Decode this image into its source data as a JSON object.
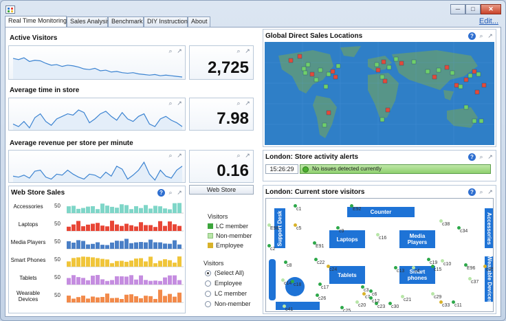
{
  "window": {
    "controls": {
      "minimize_icon": "minimize-icon",
      "maximize_icon": "maximize-icon",
      "close_icon": "close-icon"
    }
  },
  "tabs": [
    {
      "label": "Real Time Monitoring",
      "active": true
    },
    {
      "label": "Sales Analysis",
      "active": false
    },
    {
      "label": "Benchmark",
      "active": false
    },
    {
      "label": "DIY Instructions",
      "active": false
    },
    {
      "label": "About",
      "active": false
    }
  ],
  "edit_link": "Edit...",
  "metrics": [
    {
      "title": "Active Visitors",
      "value": "2,725",
      "trend": [
        38,
        36,
        39,
        33,
        35,
        34,
        30,
        27,
        28,
        25,
        27,
        26,
        24,
        21,
        20,
        22,
        18,
        19,
        16,
        17,
        15,
        14,
        15,
        13,
        12,
        11,
        12,
        10,
        11,
        10,
        9,
        8
      ]
    },
    {
      "title": "Average time in store",
      "value": "7.98",
      "trend": [
        20,
        18,
        22,
        17,
        25,
        28,
        22,
        19,
        24,
        26,
        28,
        27,
        31,
        29,
        21,
        24,
        28,
        30,
        26,
        23,
        29,
        24,
        22,
        26,
        28,
        20,
        18,
        24,
        26,
        23,
        21,
        18
      ]
    },
    {
      "title": "Average revenue per store per minute",
      "value": "0.16",
      "trend": [
        16,
        15,
        17,
        14,
        21,
        22,
        15,
        13,
        18,
        17,
        22,
        18,
        15,
        13,
        18,
        17,
        14,
        20,
        16,
        26,
        23,
        13,
        17,
        22,
        30,
        18,
        12,
        22,
        16,
        14,
        22,
        26
      ]
    }
  ],
  "web_store_button": "Web Store",
  "web_store_sales": {
    "title": "Web Store Sales",
    "categories": [
      {
        "label": "Accessories",
        "axis": "50",
        "color": "#7fd6c8"
      },
      {
        "label": "Laptops",
        "axis": "50",
        "color": "#e84535"
      },
      {
        "label": "Media Players",
        "axis": "50",
        "color": "#4a7fc6"
      },
      {
        "label": "Smart Phones",
        "axis": "50",
        "color": "#f0c53a"
      },
      {
        "label": "Tablets",
        "axis": "50",
        "color": "#c58de0"
      },
      {
        "label": "Wearable Devices",
        "axis": "50",
        "color": "#f28a4a"
      }
    ],
    "legend": {
      "title": "Visitors",
      "items": [
        {
          "label": "LC member",
          "color": "#3ca53c"
        },
        {
          "label": "Non-member",
          "color": "#b8e6a8"
        },
        {
          "label": "Employee",
          "color": "#d8b22a"
        }
      ]
    },
    "filter": {
      "title": "Visitors",
      "options": [
        {
          "label": "(Select All)",
          "checked": true
        },
        {
          "label": "Employee",
          "checked": false
        },
        {
          "label": "LC member",
          "checked": false
        },
        {
          "label": "Non-member",
          "checked": false
        }
      ]
    }
  },
  "map": {
    "title": "Global Direct Sales Locations"
  },
  "alerts": {
    "title": "London: Store activity alerts",
    "time": "15:26:29",
    "message": "No issues detected currently"
  },
  "visitors": {
    "title": "London: Current store visitors",
    "zones": [
      "Counter",
      "Laptops",
      "Media Players",
      "Tablets",
      "Smart phones",
      "Support Desk",
      "Accessories",
      "Wearable Devices"
    ],
    "labels": [
      "c1",
      "E92",
      "c16",
      "c9",
      "c5",
      "E91",
      "c38",
      "c34",
      "c6",
      "c21",
      "c22",
      "c24",
      "c13",
      "c4",
      "c19",
      "c15",
      "c10",
      "E96",
      "c35",
      "c8",
      "c14",
      "c17",
      "c26",
      "c37",
      "c3",
      "c33",
      "c11",
      "c20",
      "c23",
      "c30",
      "c41",
      "c2",
      "c7",
      "c18",
      "E98",
      "c12",
      "c25",
      "c29"
    ]
  }
}
